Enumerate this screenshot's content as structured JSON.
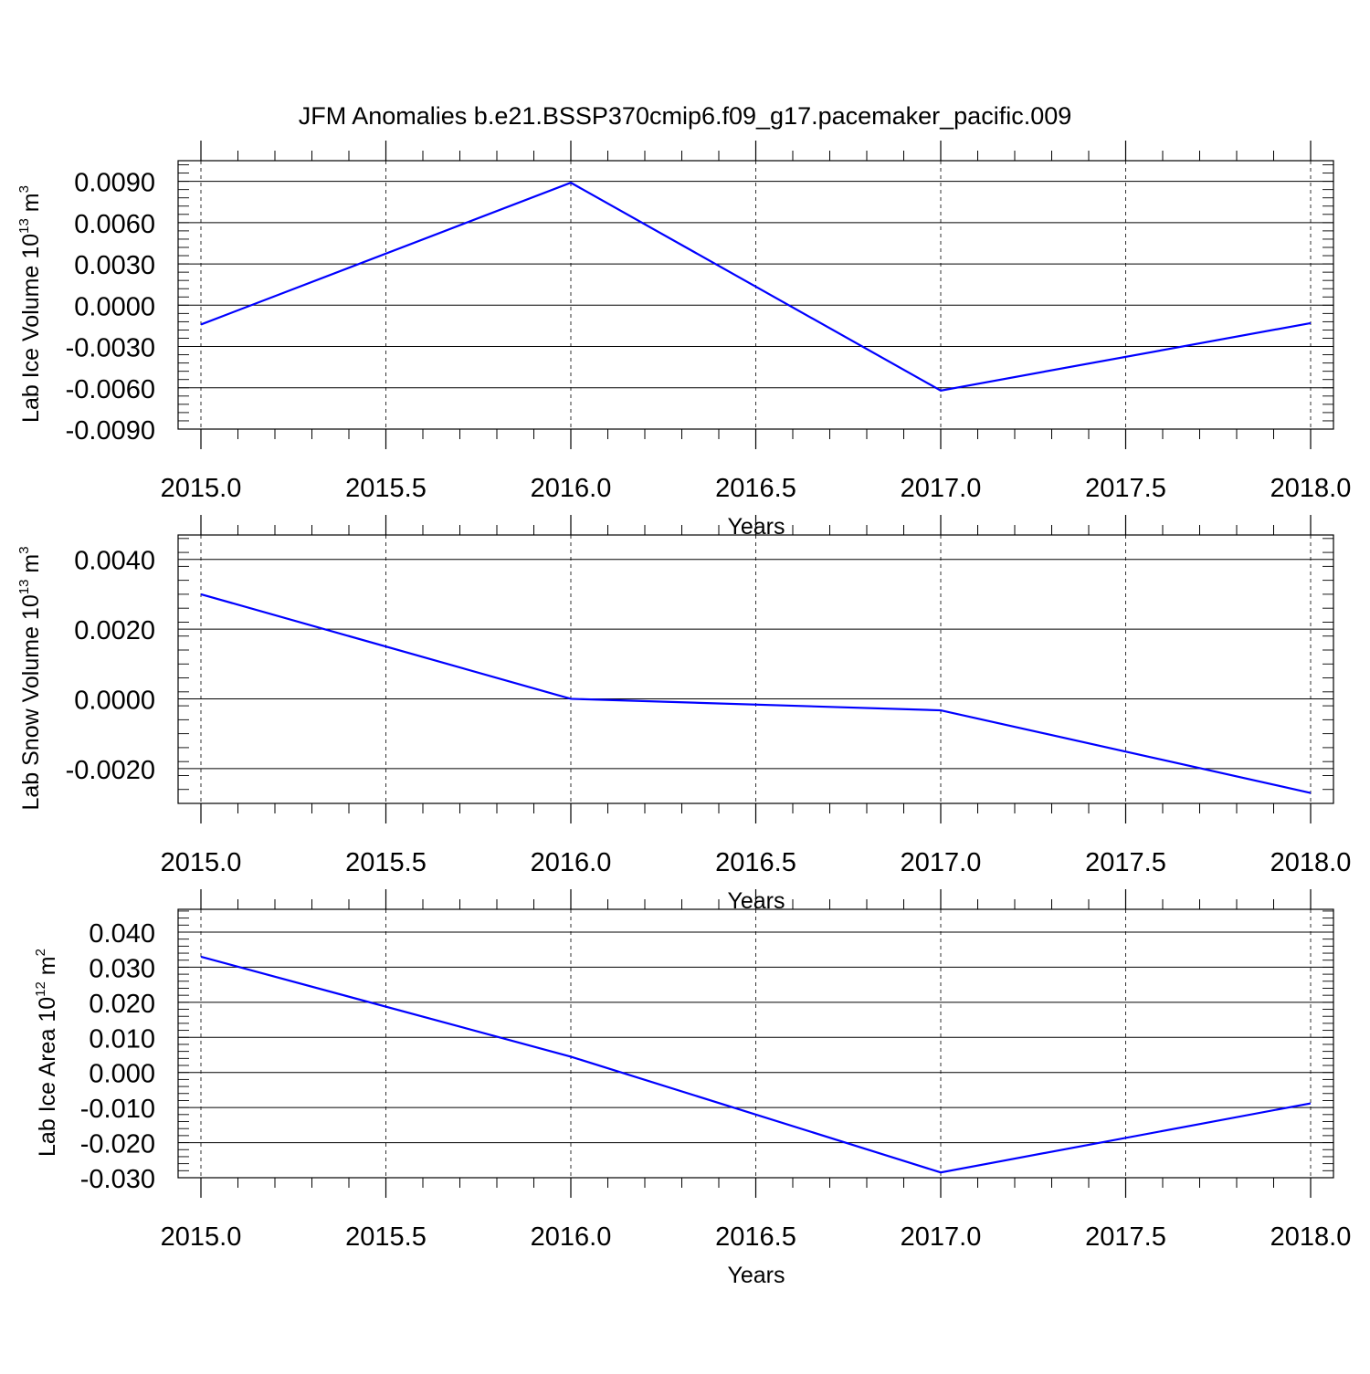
{
  "title": "JFM Anomalies b.e21.BSSP370cmip6.f09_g17.pacemaker_pacific.009",
  "line_color": "#0000ff",
  "chart_data": [
    {
      "type": "line",
      "xlabel": "Years",
      "ylabel": "Lab Ice Volume 10",
      "ylabel_exp": "13",
      "ylabel_unit": " m",
      "ylabel_unit_exp": "3",
      "x": [
        2015,
        2016,
        2017,
        2018
      ],
      "values": [
        -0.0014,
        0.0089,
        -0.0062,
        -0.0013
      ],
      "xlim": [
        2015,
        2018
      ],
      "ylim": [
        -0.009,
        0.0105
      ],
      "xticks": [
        "2015.0",
        "2015.5",
        "2016.0",
        "2016.5",
        "2017.0",
        "2017.5",
        "2018.0"
      ],
      "yticks": [
        "-0.0090",
        "-0.0060",
        "-0.0030",
        "0.0000",
        "0.0030",
        "0.0060",
        "0.0090"
      ],
      "grid": "vertical dashed"
    },
    {
      "type": "line",
      "xlabel": "Years",
      "ylabel": "Lab Snow Volume 10",
      "ylabel_exp": "13",
      "ylabel_unit": " m",
      "ylabel_unit_exp": "3",
      "x": [
        2015,
        2016,
        2017,
        2018
      ],
      "values": [
        0.003,
        0.0,
        -0.00033,
        -0.0027
      ],
      "xlim": [
        2015,
        2018
      ],
      "ylim": [
        -0.003,
        0.0047
      ],
      "xticks": [
        "2015.0",
        "2015.5",
        "2016.0",
        "2016.5",
        "2017.0",
        "2017.5",
        "2018.0"
      ],
      "yticks": [
        "-0.0020",
        "0.0000",
        "0.0020",
        "0.0040"
      ],
      "grid": "vertical dashed"
    },
    {
      "type": "line",
      "xlabel": "Years",
      "ylabel": "Lab Ice Area 10",
      "ylabel_exp": "12",
      "ylabel_unit": " m",
      "ylabel_unit_exp": "2",
      "x": [
        2015,
        2016,
        2017,
        2018
      ],
      "values": [
        0.033,
        0.0045,
        -0.0285,
        -0.0088
      ],
      "xlim": [
        2015,
        2018
      ],
      "ylim": [
        -0.03,
        0.0465
      ],
      "xticks": [
        "2015.0",
        "2015.5",
        "2016.0",
        "2016.5",
        "2017.0",
        "2017.5",
        "2018.0"
      ],
      "yticks": [
        "-0.030",
        "-0.020",
        "-0.010",
        "0.000",
        "0.010",
        "0.020",
        "0.030",
        "0.040"
      ],
      "grid": "vertical dashed"
    }
  ]
}
